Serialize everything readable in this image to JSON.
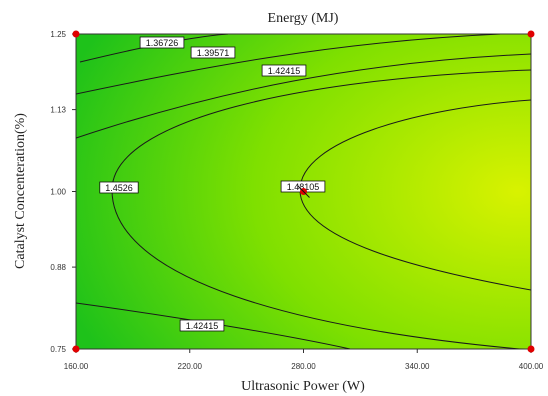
{
  "chart_data": {
    "type": "contour",
    "title": "Energy (MJ)",
    "xlabel": "Ultrasonic Power (W)",
    "ylabel": "Catalyst Concenteration(%)",
    "xlim": [
      160,
      400
    ],
    "ylim": [
      0.75,
      1.25
    ],
    "x_ticks": [
      "160.00",
      "220.00",
      "280.00",
      "340.00",
      "400.00"
    ],
    "y_ticks": [
      "0.75",
      "0.88",
      "1.00",
      "1.13",
      "1.25"
    ],
    "contour_levels": [
      {
        "label": "1.36726",
        "value": 1.36726
      },
      {
        "label": "1.39571",
        "value": 1.39571
      },
      {
        "label": "1.42415",
        "value": 1.42415
      },
      {
        "label": "1.4526",
        "value": 1.4526
      },
      {
        "label": "1.48105",
        "value": 1.48105
      }
    ],
    "lower_label": "1.42415",
    "design_points": [
      {
        "x": 160,
        "y": 1.25
      },
      {
        "x": 400,
        "y": 1.25
      },
      {
        "x": 160,
        "y": 0.75
      },
      {
        "x": 400,
        "y": 0.75
      },
      {
        "x": 280,
        "y": 1.0
      }
    ],
    "colors": {
      "low": "#1ec21a",
      "high": "#d8f200",
      "line": "#1a1a1a",
      "point": "#e00000"
    }
  }
}
